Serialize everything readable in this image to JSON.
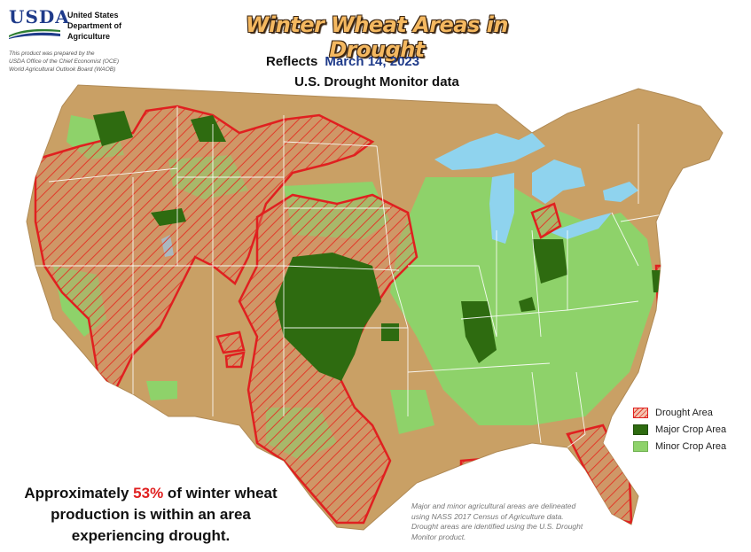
{
  "header": {
    "logo_text": "USDA",
    "agency_lines": [
      "United States",
      "Department of",
      "Agriculture"
    ],
    "credit_lines": [
      "This product was prepared by the",
      "USDA Office of the Chief Economist (OCE)",
      "World Agricultural Outlook Board (WAOB)"
    ],
    "title": "Winter Wheat Areas in Drought",
    "reflects_label": "Reflects",
    "date": "March 14, 2023",
    "subtitle": "U.S. Drought Monitor data"
  },
  "legend": {
    "items": [
      {
        "label": "Drought Area",
        "icon": "hatched-red-swatch"
      },
      {
        "label": "Major Crop Area",
        "icon": "dark-green-swatch"
      },
      {
        "label": "Minor Crop Area",
        "icon": "light-green-swatch"
      }
    ]
  },
  "summary": {
    "before": "Approximately ",
    "percent": "53%",
    "after": " of winter wheat production is within an area experiencing drought."
  },
  "note": {
    "text": "Major and minor agricultural areas are delineated using NASS 2017 Census of Agriculture data.  Drought areas are identified using the U.S. Drought Monitor product."
  },
  "colors": {
    "land": "#c9a065",
    "water": "#8fd3ee",
    "drought": "#e23a2a",
    "major_crop": "#2e6b10",
    "minor_crop": "#8ed26a",
    "title_fill": "#f4b860",
    "usda_blue": "#1f3b8a"
  }
}
